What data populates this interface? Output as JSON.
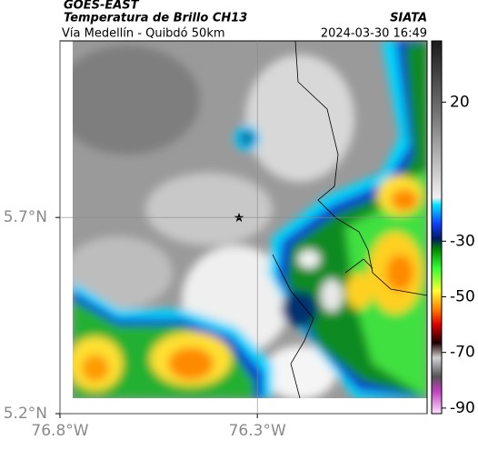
{
  "header": {
    "source": "GOES-EAST",
    "title": "Temperatura de Brillo CH13",
    "agency": "SIATA",
    "subtitle": "Vía Medellín - Quibdó 50km",
    "datetime": "2024-03-30 16:49"
  },
  "map": {
    "xlim": [
      -76.8,
      -75.87
    ],
    "ylim": [
      5.2,
      6.15
    ],
    "xticks": [
      {
        "value": -76.8,
        "label": "76.8°W"
      },
      {
        "value": -76.3,
        "label": "76.3°W"
      }
    ],
    "yticks": [
      {
        "value": 5.2,
        "label": "5.2°N"
      },
      {
        "value": 5.7,
        "label": "5.7°N"
      }
    ]
  },
  "colorbar": {
    "lim": [
      -92,
      42
    ],
    "ticks": [
      20,
      -30,
      -50,
      -70,
      -90
    ]
  }
}
